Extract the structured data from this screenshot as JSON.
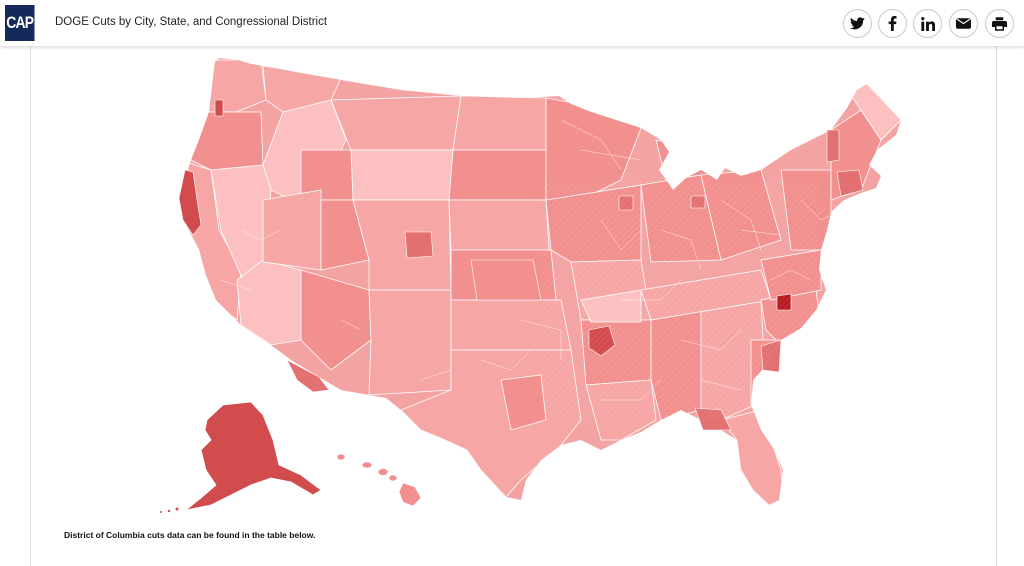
{
  "header": {
    "logo_text": "CAP",
    "title": "DOGE Cuts by City, State, and Congressional District",
    "share_buttons": [
      {
        "name": "twitter-icon",
        "glyph": "twitter"
      },
      {
        "name": "facebook-icon",
        "glyph": "facebook"
      },
      {
        "name": "linkedin-icon",
        "glyph": "linkedin"
      },
      {
        "name": "email-icon",
        "glyph": "email"
      },
      {
        "name": "print-icon",
        "glyph": "print"
      }
    ]
  },
  "map": {
    "colors": {
      "lightest": "#fdc0c0",
      "light": "#f7a6a6",
      "medium": "#f29090",
      "dark": "#e37172",
      "darker": "#d24b4d",
      "darkest": "#b71c22",
      "border": "#ffffff"
    }
  },
  "footer": {
    "dc_note": "District of Columbia cuts data can be found in the table below."
  }
}
